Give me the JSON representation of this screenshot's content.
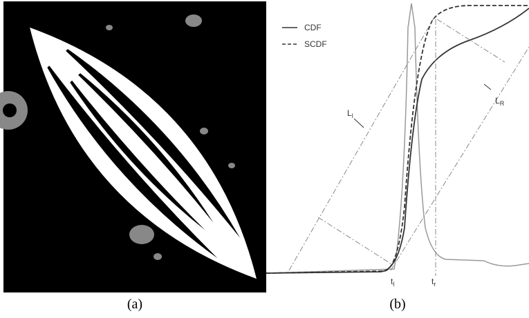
{
  "panels": [
    {
      "caption": "(a)"
    },
    {
      "caption": "(b)",
      "legend": [
        {
          "name": "CDF"
        },
        {
          "name": "SCDF"
        }
      ],
      "annotations": {
        "left_line": {
          "main": "L",
          "sub": "l"
        },
        "right_line": {
          "main": "L",
          "sub": "R"
        },
        "left_threshold": {
          "main": "t",
          "sub": "l"
        },
        "right_threshold": {
          "main": "t",
          "sub": "r"
        }
      }
    }
  ]
}
